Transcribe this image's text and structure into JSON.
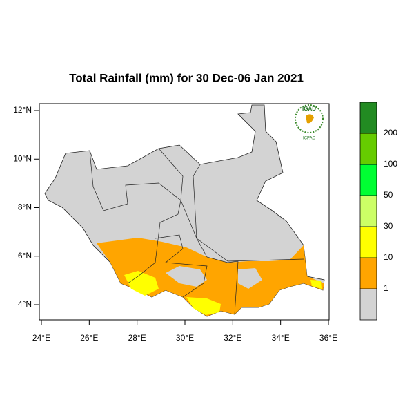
{
  "title": "Total Rainfall (mm) for 30 Dec-06 Jan 2021",
  "lon_labels": [
    "24°E",
    "26°E",
    "28°E",
    "30°E",
    "32°E",
    "34°E",
    "36°E"
  ],
  "lat_labels": [
    "12°N",
    "10°N",
    "8°N",
    "6°N",
    "4°N"
  ],
  "legend": {
    "colors": [
      "#d3d3d3",
      "#ffa500",
      "#ffff00",
      "#ccff66",
      "#00ff33",
      "#66cc00",
      "#228b22"
    ],
    "labels": [
      "1",
      "10",
      "30",
      "50",
      "100",
      "200"
    ]
  },
  "logo": {
    "top": "IGAD",
    "bottom": "ICPAC"
  }
}
